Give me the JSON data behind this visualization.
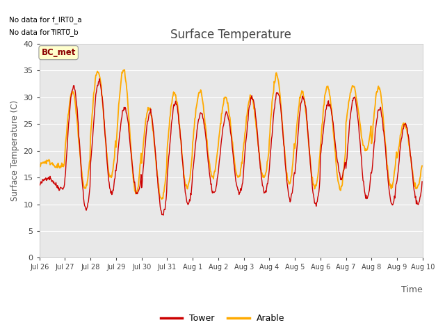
{
  "title": "Surface Temperature",
  "ylabel": "Surface Temperature (C)",
  "xlabel": "Time",
  "ylim": [
    0,
    40
  ],
  "yticks": [
    0,
    5,
    10,
    15,
    20,
    25,
    30,
    35,
    40
  ],
  "tower_color": "#cc0000",
  "arable_color": "#ffaa00",
  "bg_color": "#e8e8e8",
  "fig_bg": "#ffffff",
  "no_data_text1": "No data for f_IRT0_a",
  "no_data_text2": "No data for f̅IRT0̅_b",
  "bc_met_label": "BC_met",
  "legend_label_tower": "Tower",
  "legend_label_arable": "Arable",
  "date_labels": [
    "Jul 26",
    "Jul 27",
    "Jul 28",
    "Jul 29",
    "Jul 30",
    "Jul 31",
    "Aug 1",
    "Aug 2",
    "Aug 3",
    "Aug 4",
    "Aug 5",
    "Aug 6",
    "Aug 7",
    "Aug 8",
    "Aug 9",
    "Aug 10"
  ],
  "n_days": 15,
  "points_per_day": 48,
  "tower_day_peaks": [
    15,
    32,
    33,
    28,
    27,
    29,
    27,
    27,
    30,
    31,
    30,
    29,
    30,
    28,
    25,
    15
  ],
  "tower_day_mins": [
    13,
    9,
    12,
    12,
    8,
    10,
    12,
    12,
    12,
    11,
    10,
    15,
    11,
    10,
    10,
    14
  ],
  "arable_day_peaks": [
    18,
    31,
    35,
    35,
    28,
    31,
    31,
    30,
    30,
    34,
    31,
    32,
    32,
    32,
    25,
    17
  ],
  "arable_day_mins": [
    17,
    13,
    15,
    12,
    11,
    13,
    15,
    15,
    15,
    14,
    13,
    13,
    20,
    13,
    13,
    17
  ]
}
